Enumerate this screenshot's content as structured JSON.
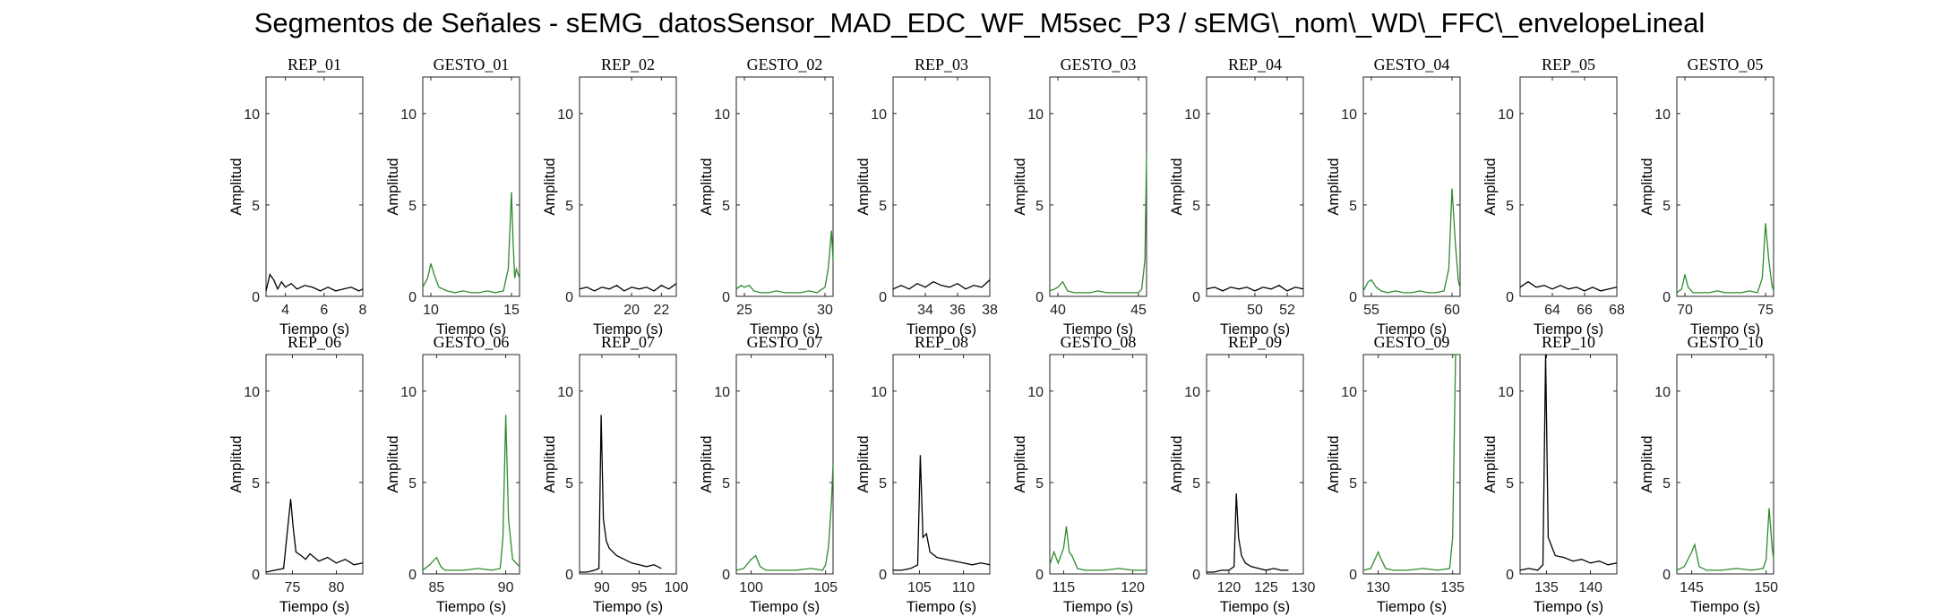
{
  "figure": {
    "title": "Segmentos de Señales - sEMG_datosSensor_MAD_EDC_WF_M5sec_P3 / sEMG\\_nom\\_WD\\_FFC\\_envelopeLineal"
  },
  "colors": {
    "rep": "#000000",
    "gesto": "#2e8b2e"
  },
  "chart_data": [
    {
      "type": "line",
      "title": "REP_01",
      "xlabel": "Tiempo (s)",
      "ylabel": "Amplitud",
      "xlim": [
        3,
        8
      ],
      "ylim": [
        0,
        12
      ],
      "xticks": [
        4,
        6,
        8
      ],
      "yticks": [
        0,
        5,
        10
      ],
      "color": "#000000",
      "x": [
        3,
        3.2,
        3.4,
        3.6,
        3.8,
        4,
        4.3,
        4.6,
        5,
        5.4,
        5.8,
        6.2,
        6.6,
        7,
        7.4,
        7.8,
        8
      ],
      "y": [
        0.3,
        1.2,
        0.9,
        0.4,
        0.8,
        0.5,
        0.7,
        0.4,
        0.6,
        0.5,
        0.3,
        0.5,
        0.3,
        0.4,
        0.5,
        0.3,
        0.4
      ]
    },
    {
      "type": "line",
      "title": "GESTO_01",
      "xlabel": "Tiempo (s)",
      "ylabel": "Amplitud",
      "xlim": [
        9.5,
        15.5
      ],
      "ylim": [
        0,
        12
      ],
      "xticks": [
        10,
        15
      ],
      "yticks": [
        0,
        5,
        10
      ],
      "color": "#2e8b2e",
      "x": [
        9.5,
        9.8,
        10,
        10.2,
        10.5,
        11,
        11.5,
        12,
        12.5,
        13,
        13.5,
        14,
        14.5,
        14.8,
        15,
        15.1,
        15.2,
        15.3,
        15.5
      ],
      "y": [
        0.5,
        1.0,
        1.8,
        1.2,
        0.5,
        0.3,
        0.2,
        0.3,
        0.2,
        0.2,
        0.3,
        0.2,
        0.3,
        1.5,
        5.7,
        3.0,
        1.0,
        1.5,
        1.0
      ]
    },
    {
      "type": "line",
      "title": "REP_02",
      "xlabel": "Tiempo (s)",
      "ylabel": "Amplitud",
      "xlim": [
        16.5,
        23
      ],
      "ylim": [
        0,
        12
      ],
      "xticks": [
        20,
        22
      ],
      "yticks": [
        0,
        5,
        10
      ],
      "color": "#000000",
      "x": [
        16.5,
        17,
        17.5,
        18,
        18.5,
        19,
        19.5,
        20,
        20.5,
        21,
        21.5,
        22,
        22.5,
        23
      ],
      "y": [
        0.4,
        0.5,
        0.3,
        0.5,
        0.4,
        0.6,
        0.3,
        0.5,
        0.4,
        0.5,
        0.3,
        0.6,
        0.4,
        0.7
      ]
    },
    {
      "type": "line",
      "title": "GESTO_02",
      "xlabel": "Tiempo (s)",
      "ylabel": "Amplitud",
      "xlim": [
        24.5,
        30.5
      ],
      "ylim": [
        0,
        12
      ],
      "xticks": [
        25,
        30
      ],
      "yticks": [
        0,
        5,
        10
      ],
      "color": "#2e8b2e",
      "x": [
        24.5,
        24.8,
        25,
        25.3,
        25.6,
        26,
        26.5,
        27,
        27.5,
        28,
        28.5,
        29,
        29.5,
        30,
        30.2,
        30.4,
        30.5
      ],
      "y": [
        0.4,
        0.6,
        0.5,
        0.6,
        0.3,
        0.2,
        0.2,
        0.3,
        0.2,
        0.2,
        0.2,
        0.3,
        0.2,
        0.5,
        1.5,
        3.6,
        2.0
      ]
    },
    {
      "type": "line",
      "title": "REP_03",
      "xlabel": "Tiempo (s)",
      "ylabel": "Amplitud",
      "xlim": [
        32,
        38
      ],
      "ylim": [
        0,
        12
      ],
      "xticks": [
        34,
        36,
        38
      ],
      "yticks": [
        0,
        5,
        10
      ],
      "color": "#000000",
      "x": [
        32,
        32.5,
        33,
        33.5,
        34,
        34.5,
        35,
        35.5,
        36,
        36.5,
        37,
        37.5,
        38
      ],
      "y": [
        0.4,
        0.6,
        0.4,
        0.7,
        0.5,
        0.8,
        0.6,
        0.5,
        0.7,
        0.4,
        0.6,
        0.5,
        0.9
      ]
    },
    {
      "type": "line",
      "title": "GESTO_03",
      "xlabel": "Tiempo (s)",
      "ylabel": "Amplitud",
      "xlim": [
        39.5,
        45.5
      ],
      "ylim": [
        0,
        12
      ],
      "xticks": [
        40,
        45
      ],
      "yticks": [
        0,
        5,
        10
      ],
      "color": "#2e8b2e",
      "x": [
        39.5,
        39.8,
        40,
        40.3,
        40.6,
        41,
        41.5,
        42,
        42.5,
        43,
        43.5,
        44,
        44.5,
        45,
        45.2,
        45.4,
        45.5
      ],
      "y": [
        0.3,
        0.4,
        0.5,
        0.8,
        0.3,
        0.2,
        0.2,
        0.2,
        0.3,
        0.2,
        0.2,
        0.2,
        0.2,
        0.2,
        0.4,
        2.0,
        7.8
      ]
    },
    {
      "type": "line",
      "title": "REP_04",
      "xlabel": "Tiempo (s)",
      "ylabel": "Amplitud",
      "xlim": [
        47,
        53
      ],
      "ylim": [
        0,
        12
      ],
      "xticks": [
        50,
        52
      ],
      "yticks": [
        0,
        5,
        10
      ],
      "color": "#000000",
      "x": [
        47,
        47.5,
        48,
        48.5,
        49,
        49.5,
        50,
        50.5,
        51,
        51.5,
        52,
        52.5,
        53
      ],
      "y": [
        0.4,
        0.5,
        0.3,
        0.5,
        0.4,
        0.5,
        0.3,
        0.5,
        0.4,
        0.6,
        0.3,
        0.5,
        0.4
      ]
    },
    {
      "type": "line",
      "title": "GESTO_04",
      "xlabel": "Tiempo (s)",
      "ylabel": "Amplitud",
      "xlim": [
        54.5,
        60.5
      ],
      "ylim": [
        0,
        12
      ],
      "xticks": [
        55,
        60
      ],
      "yticks": [
        0,
        5,
        10
      ],
      "color": "#2e8b2e",
      "x": [
        54.5,
        54.8,
        55,
        55.3,
        55.6,
        56,
        56.5,
        57,
        57.5,
        58,
        58.5,
        59,
        59.5,
        59.8,
        60,
        60.2,
        60.4,
        60.5
      ],
      "y": [
        0.3,
        0.8,
        0.9,
        0.5,
        0.3,
        0.2,
        0.3,
        0.2,
        0.2,
        0.3,
        0.2,
        0.2,
        0.3,
        1.5,
        5.9,
        3.0,
        0.8,
        0.5
      ]
    },
    {
      "type": "line",
      "title": "REP_05",
      "xlabel": "Tiempo (s)",
      "ylabel": "Amplitud",
      "xlim": [
        62,
        68
      ],
      "ylim": [
        0,
        12
      ],
      "xticks": [
        64,
        66,
        68
      ],
      "yticks": [
        0,
        5,
        10
      ],
      "color": "#000000",
      "x": [
        62,
        62.5,
        63,
        63.5,
        64,
        64.5,
        65,
        65.5,
        66,
        66.5,
        67,
        67.5,
        68
      ],
      "y": [
        0.5,
        0.8,
        0.5,
        0.6,
        0.4,
        0.6,
        0.4,
        0.5,
        0.3,
        0.5,
        0.3,
        0.4,
        0.5
      ]
    },
    {
      "type": "line",
      "title": "GESTO_05",
      "xlabel": "Tiempo (s)",
      "ylabel": "Amplitud",
      "xlim": [
        69.5,
        75.5
      ],
      "ylim": [
        0,
        12
      ],
      "xticks": [
        70,
        75
      ],
      "yticks": [
        0,
        5,
        10
      ],
      "color": "#2e8b2e",
      "x": [
        69.5,
        69.8,
        70,
        70.2,
        70.5,
        71,
        71.5,
        72,
        72.5,
        73,
        73.5,
        74,
        74.5,
        74.8,
        75,
        75.2,
        75.4,
        75.5
      ],
      "y": [
        0.2,
        0.4,
        1.2,
        0.5,
        0.2,
        0.2,
        0.2,
        0.3,
        0.2,
        0.2,
        0.2,
        0.3,
        0.2,
        1.0,
        4.0,
        2.0,
        0.6,
        0.3
      ]
    },
    {
      "type": "line",
      "title": "REP_06",
      "xlabel": "Tiempo (s)",
      "ylabel": "Amplitud",
      "xlim": [
        72,
        83
      ],
      "ylim": [
        0,
        12
      ],
      "xticks": [
        75,
        80
      ],
      "yticks": [
        0,
        5,
        10
      ],
      "color": "#000000",
      "x": [
        72,
        73,
        74,
        74.8,
        75.1,
        75.4,
        76,
        76.5,
        77,
        78,
        79,
        80,
        81,
        82,
        83
      ],
      "y": [
        0.1,
        0.2,
        0.3,
        4.1,
        2.5,
        1.2,
        1.0,
        0.8,
        1.1,
        0.7,
        0.9,
        0.6,
        0.8,
        0.5,
        0.6
      ]
    },
    {
      "type": "line",
      "title": "GESTO_06",
      "xlabel": "Tiempo (s)",
      "ylabel": "Amplitud",
      "xlim": [
        84,
        91
      ],
      "ylim": [
        0,
        12
      ],
      "xticks": [
        85,
        90
      ],
      "yticks": [
        0,
        5,
        10
      ],
      "color": "#2e8b2e",
      "x": [
        84,
        84.5,
        85,
        85.3,
        85.6,
        86,
        87,
        88,
        89,
        89.6,
        89.8,
        90,
        90.2,
        90.5,
        91
      ],
      "y": [
        0.2,
        0.5,
        0.9,
        0.4,
        0.2,
        0.2,
        0.2,
        0.3,
        0.2,
        0.3,
        2.0,
        8.7,
        3.0,
        0.8,
        0.4
      ]
    },
    {
      "type": "line",
      "title": "REP_07",
      "xlabel": "Tiempo (s)",
      "ylabel": "Amplitud",
      "xlim": [
        87,
        100
      ],
      "ylim": [
        0,
        12
      ],
      "xticks": [
        90,
        95,
        100
      ],
      "yticks": [
        0,
        5,
        10
      ],
      "color": "#000000",
      "x": [
        87,
        88,
        89,
        89.6,
        89.9,
        90.2,
        90.6,
        91,
        92,
        93,
        94,
        95,
        96,
        97,
        98
      ],
      "y": [
        0.1,
        0.1,
        0.2,
        0.3,
        8.7,
        3.0,
        1.8,
        1.4,
        1.0,
        0.8,
        0.6,
        0.5,
        0.4,
        0.5,
        0.3
      ]
    },
    {
      "type": "line",
      "title": "GESTO_07",
      "xlabel": "Tiempo (s)",
      "ylabel": "Amplitud",
      "xlim": [
        99,
        105.5
      ],
      "ylim": [
        0,
        12
      ],
      "xticks": [
        100,
        105
      ],
      "yticks": [
        0,
        5,
        10
      ],
      "color": "#2e8b2e",
      "x": [
        99,
        99.5,
        100,
        100.3,
        100.6,
        101,
        102,
        103,
        104,
        104.8,
        105,
        105.2,
        105.4,
        105.5
      ],
      "y": [
        0.2,
        0.3,
        0.8,
        1.0,
        0.4,
        0.2,
        0.2,
        0.2,
        0.3,
        0.2,
        0.5,
        1.5,
        4.0,
        6.0
      ]
    },
    {
      "type": "line",
      "title": "REP_08",
      "xlabel": "Tiempo (s)",
      "ylabel": "Amplitud",
      "xlim": [
        102,
        113
      ],
      "ylim": [
        0,
        12
      ],
      "xticks": [
        105,
        110
      ],
      "yticks": [
        0,
        5,
        10
      ],
      "color": "#000000",
      "x": [
        102,
        103,
        104,
        104.8,
        105.1,
        105.4,
        105.8,
        106.2,
        107,
        108,
        109,
        110,
        111,
        112,
        113
      ],
      "y": [
        0.2,
        0.2,
        0.3,
        0.5,
        6.5,
        2.0,
        2.2,
        1.2,
        0.9,
        0.8,
        0.7,
        0.6,
        0.5,
        0.6,
        0.5
      ]
    },
    {
      "type": "line",
      "title": "GESTO_08",
      "xlabel": "Tiempo (s)",
      "ylabel": "Amplitud",
      "xlim": [
        114,
        121
      ],
      "ylim": [
        0,
        12
      ],
      "xticks": [
        115,
        120
      ],
      "yticks": [
        0,
        5,
        10
      ],
      "color": "#2e8b2e",
      "x": [
        114,
        114.3,
        114.6,
        115,
        115.2,
        115.4,
        115.6,
        116,
        116.5,
        117,
        118,
        119,
        120,
        121
      ],
      "y": [
        0.5,
        1.2,
        0.6,
        1.4,
        2.6,
        1.2,
        1.0,
        0.3,
        0.2,
        0.2,
        0.2,
        0.3,
        0.2,
        0.2
      ]
    },
    {
      "type": "line",
      "title": "REP_09",
      "xlabel": "Tiempo (s)",
      "ylabel": "Amplitud",
      "xlim": [
        117,
        130
      ],
      "ylim": [
        0,
        12
      ],
      "xticks": [
        120,
        125,
        130
      ],
      "yticks": [
        0,
        5,
        10
      ],
      "color": "#000000",
      "x": [
        117,
        118,
        119,
        120,
        120.7,
        121,
        121.3,
        121.7,
        122.2,
        123,
        124,
        125,
        126,
        127,
        128
      ],
      "y": [
        0.1,
        0.1,
        0.2,
        0.2,
        0.4,
        4.4,
        2.0,
        1.0,
        0.6,
        0.4,
        0.3,
        0.2,
        0.3,
        0.2,
        0.2
      ]
    },
    {
      "type": "line",
      "title": "GESTO_09",
      "xlabel": "Tiempo (s)",
      "ylabel": "Amplitud",
      "xlim": [
        129,
        135.5
      ],
      "ylim": [
        0,
        12
      ],
      "xticks": [
        130,
        135
      ],
      "yticks": [
        0,
        5,
        10
      ],
      "color": "#2e8b2e",
      "x": [
        129,
        129.5,
        130,
        130.2,
        130.5,
        131,
        132,
        133,
        134,
        134.8,
        135,
        135.2,
        135.5
      ],
      "y": [
        0.2,
        0.3,
        1.2,
        0.8,
        0.3,
        0.2,
        0.2,
        0.3,
        0.2,
        0.3,
        2.0,
        12,
        12
      ]
    },
    {
      "type": "line",
      "title": "REP_10",
      "xlabel": "Tiempo (s)",
      "ylabel": "Amplitud",
      "xlim": [
        132,
        143
      ],
      "ylim": [
        0,
        12
      ],
      "xticks": [
        135,
        140
      ],
      "yticks": [
        0,
        5,
        10
      ],
      "color": "#000000",
      "x": [
        132,
        133,
        134,
        134.6,
        134.9,
        135.2,
        135.6,
        136,
        137,
        138,
        139,
        140,
        141,
        142,
        143
      ],
      "y": [
        0.2,
        0.3,
        0.2,
        0.5,
        12,
        2.0,
        1.5,
        1.0,
        0.9,
        0.7,
        0.8,
        0.6,
        0.7,
        0.5,
        0.6
      ]
    },
    {
      "type": "line",
      "title": "GESTO_10",
      "xlabel": "Tiempo (s)",
      "ylabel": "Amplitud",
      "xlim": [
        144,
        150.5
      ],
      "ylim": [
        0,
        12
      ],
      "xticks": [
        145,
        150
      ],
      "yticks": [
        0,
        5,
        10
      ],
      "color": "#2e8b2e",
      "x": [
        144,
        144.5,
        145,
        145.2,
        145.5,
        146,
        147,
        148,
        149,
        149.8,
        150,
        150.2,
        150.4,
        150.5
      ],
      "y": [
        0.2,
        0.4,
        1.2,
        1.6,
        0.4,
        0.2,
        0.2,
        0.3,
        0.2,
        0.3,
        0.8,
        3.6,
        1.5,
        0.8
      ]
    }
  ]
}
